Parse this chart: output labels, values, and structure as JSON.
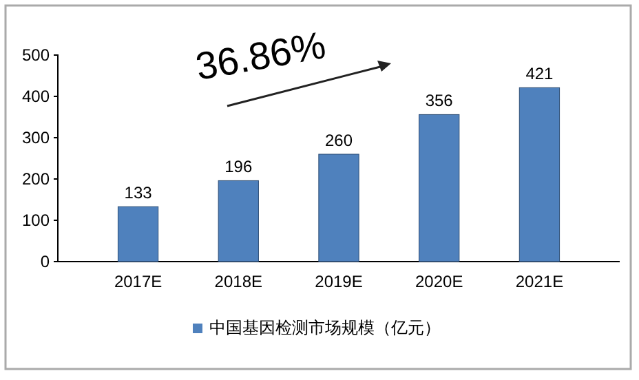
{
  "chart_data": {
    "type": "bar",
    "categories": [
      "2017E",
      "2018E",
      "2019E",
      "2020E",
      "2021E"
    ],
    "series": [
      {
        "name": "中国基因检测市场规模（亿元）",
        "color": "#4f81bd",
        "values": [
          133,
          196,
          260,
          356,
          421
        ]
      }
    ],
    "ylim": [
      0,
      500
    ],
    "yticks": [
      0,
      100,
      200,
      300,
      400,
      500
    ],
    "data_labels": true,
    "legend": "bottom",
    "grid": false,
    "annotations": [
      "36.86%"
    ]
  }
}
